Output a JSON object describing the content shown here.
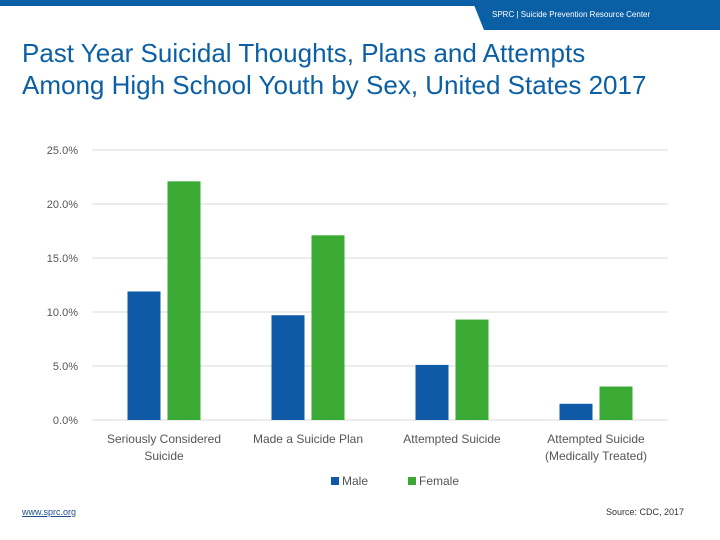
{
  "header": {
    "brand": "SPRC  |  Suicide Prevention Resource Center",
    "bar_color": "#0b5fa5"
  },
  "title": {
    "line1": "Past Year Suicidal Thoughts, Plans and Attempts",
    "line2": "Among High School Youth by Sex, United States 2017"
  },
  "chart_data": {
    "type": "bar",
    "title": "Past Year Suicidal Thoughts, Plans and Attempts Among High School Youth by Sex, United States 2017",
    "categories": [
      [
        "Seriously Considered",
        "Suicide"
      ],
      [
        "Made a Suicide Plan"
      ],
      [
        "Attempted Suicide"
      ],
      [
        "Attempted Suicide",
        "(Medically Treated)"
      ]
    ],
    "series": [
      {
        "name": "Male",
        "color": "#0e5aa7",
        "values": [
          11.9,
          9.7,
          5.1,
          1.5
        ]
      },
      {
        "name": "Female",
        "color": "#3aaa35",
        "values": [
          22.1,
          17.1,
          9.3,
          3.1
        ]
      }
    ],
    "ylim": [
      0,
      25
    ],
    "yticks": [
      "0.0%",
      "5.0%",
      "10.0%",
      "15.0%",
      "20.0%",
      "25.0%"
    ],
    "ytick_values": [
      0,
      5,
      10,
      15,
      20,
      25
    ],
    "grid": true,
    "legend_position": "bottom"
  },
  "footer": {
    "website": "www.sprc.org",
    "source": "Source: CDC, 2017"
  }
}
